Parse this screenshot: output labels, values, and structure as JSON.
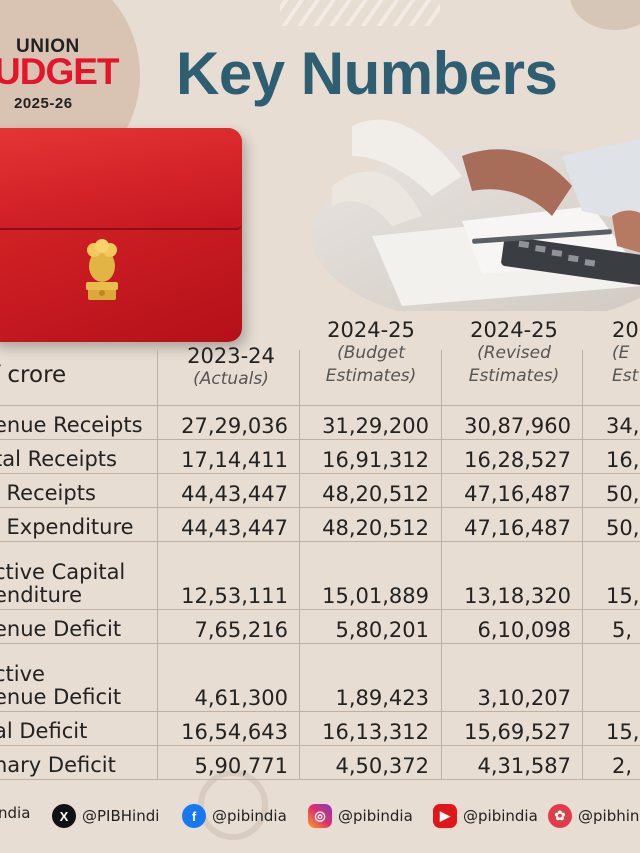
{
  "logo": {
    "line1": "UNION",
    "line2": "UDGET",
    "line3": "2025-26"
  },
  "title": "Key Numbers",
  "table": {
    "unit_label": "f crore",
    "columns": [
      {
        "year": "2023-24",
        "sub1": "(Actuals)",
        "sub2": ""
      },
      {
        "year": "2024-25",
        "sub1": "(Budget",
        "sub2": "Estimates)"
      },
      {
        "year": "2024-25",
        "sub1": "(Revised",
        "sub2": "Estimates)"
      },
      {
        "year": "20",
        "sub1": "(E",
        "sub2": "Est"
      }
    ],
    "rows": [
      {
        "label1": "enue Receipts",
        "label2": "",
        "values": [
          "27,29,036",
          "31,29,200",
          "30,87,960",
          "34,"
        ]
      },
      {
        "label1": "tal Receipts",
        "label2": "",
        "values": [
          "17,14,411",
          "16,91,312",
          "16,28,527",
          "16,"
        ]
      },
      {
        "label1": "l Receipts",
        "label2": "",
        "values": [
          "44,43,447",
          "48,20,512",
          "47,16,487",
          "50,"
        ]
      },
      {
        "label1": "l Expenditure",
        "label2": "",
        "values": [
          "44,43,447",
          "48,20,512",
          "47,16,487",
          "50,"
        ]
      },
      {
        "label1": "ctive Capital",
        "label2": "enditure",
        "values": [
          "12,53,111",
          "15,01,889",
          "13,18,320",
          "15,"
        ]
      },
      {
        "label1": "enue Deficit",
        "label2": "",
        "values": [
          "7,65,216",
          "5,80,201",
          "6,10,098",
          "5,"
        ]
      },
      {
        "label1": "ctive",
        "label2": "enue Deficit",
        "values": [
          "4,61,300",
          "1,89,423",
          "3,10,207",
          ""
        ]
      },
      {
        "label1": "al Deficit",
        "label2": "",
        "values": [
          "16,54,643",
          "16,13,312",
          "15,69,527",
          "15,"
        ]
      },
      {
        "label1": "nary Deficit",
        "label2": "",
        "values": [
          "5,90,771",
          "4,50,372",
          "4,31,587",
          "2,"
        ]
      }
    ]
  },
  "footer": {
    "handles": [
      {
        "icon": "partial-icon",
        "handle": "ndia"
      },
      {
        "icon": "x-icon",
        "handle": "@PIBHindi"
      },
      {
        "icon": "facebook-icon",
        "handle": "@pibindia"
      },
      {
        "icon": "instagram-icon",
        "handle": "@pibindia"
      },
      {
        "icon": "youtube-icon",
        "handle": "@pibindia"
      },
      {
        "icon": "koo-icon",
        "handle": "@pibhin"
      }
    ]
  },
  "colors": {
    "title": "#2e5e72",
    "budget_red": "#e4142b",
    "background": "#e7ddd3"
  }
}
